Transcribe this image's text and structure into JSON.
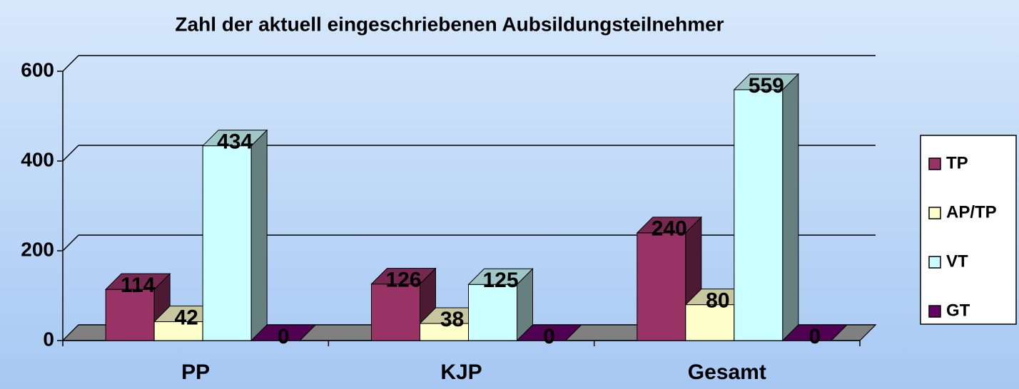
{
  "chart_data": {
    "type": "bar3d",
    "title": "Zahl der aktuell eingeschriebenen Aubsildungsteilnehmer",
    "categories": [
      "PP",
      "KJP",
      "Gesamt"
    ],
    "series": [
      {
        "name": "TP",
        "color": "#993366",
        "values": [
          114,
          126,
          240
        ]
      },
      {
        "name": "AP/TP",
        "color": "#ffffcc",
        "values": [
          42,
          38,
          80
        ]
      },
      {
        "name": "VT",
        "color": "#ccffff",
        "values": [
          434,
          125,
          559
        ]
      },
      {
        "name": "GT",
        "color": "#660066",
        "values": [
          0,
          0,
          0
        ]
      }
    ],
    "ylim": [
      0,
      600
    ],
    "yticks": [
      0,
      200,
      400,
      600
    ],
    "grid": true,
    "legend": "right"
  }
}
